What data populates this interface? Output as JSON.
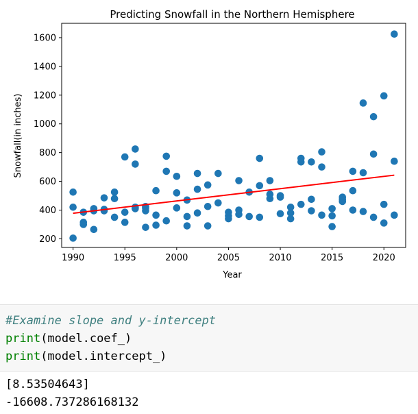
{
  "chart_data": {
    "type": "scatter",
    "title": "Predicting Snowfall in the Northern Hemisphere",
    "xlabel": "Year",
    "ylabel": "Snowfall(in inches)",
    "xlim": [
      1988.9,
      2022.1
    ],
    "ylim": [
      140,
      1700
    ],
    "xticks": [
      1990,
      1995,
      2000,
      2005,
      2010,
      2015,
      2020
    ],
    "yticks": [
      200,
      400,
      600,
      800,
      1000,
      1200,
      1400,
      1600
    ],
    "grid": false,
    "marker_color": "#1f77b4",
    "fit_line_color": "#ff0000",
    "points": [
      [
        1990,
        205
      ],
      [
        1990,
        420
      ],
      [
        1990,
        525
      ],
      [
        1991,
        300
      ],
      [
        1991,
        315
      ],
      [
        1991,
        385
      ],
      [
        1992,
        265
      ],
      [
        1992,
        395
      ],
      [
        1992,
        410
      ],
      [
        1993,
        395
      ],
      [
        1993,
        405
      ],
      [
        1993,
        485
      ],
      [
        1994,
        350
      ],
      [
        1994,
        480
      ],
      [
        1994,
        525
      ],
      [
        1995,
        315
      ],
      [
        1995,
        385
      ],
      [
        1995,
        770
      ],
      [
        1996,
        410
      ],
      [
        1996,
        420
      ],
      [
        1996,
        720
      ],
      [
        1996,
        825
      ],
      [
        1997,
        280
      ],
      [
        1997,
        395
      ],
      [
        1997,
        415
      ],
      [
        1997,
        425
      ],
      [
        1998,
        295
      ],
      [
        1998,
        365
      ],
      [
        1998,
        535
      ],
      [
        1999,
        325
      ],
      [
        1999,
        670
      ],
      [
        1999,
        775
      ],
      [
        2000,
        415
      ],
      [
        2000,
        520
      ],
      [
        2000,
        635
      ],
      [
        2001,
        290
      ],
      [
        2001,
        355
      ],
      [
        2001,
        470
      ],
      [
        2002,
        380
      ],
      [
        2002,
        545
      ],
      [
        2002,
        655
      ],
      [
        2003,
        290
      ],
      [
        2003,
        425
      ],
      [
        2003,
        575
      ],
      [
        2004,
        450
      ],
      [
        2004,
        655
      ],
      [
        2005,
        340
      ],
      [
        2005,
        360
      ],
      [
        2005,
        385
      ],
      [
        2006,
        370
      ],
      [
        2006,
        400
      ],
      [
        2006,
        605
      ],
      [
        2007,
        355
      ],
      [
        2007,
        525
      ],
      [
        2008,
        350
      ],
      [
        2008,
        570
      ],
      [
        2008,
        760
      ],
      [
        2009,
        480
      ],
      [
        2009,
        510
      ],
      [
        2009,
        605
      ],
      [
        2010,
        375
      ],
      [
        2010,
        490
      ],
      [
        2010,
        500
      ],
      [
        2011,
        340
      ],
      [
        2011,
        380
      ],
      [
        2011,
        420
      ],
      [
        2012,
        440
      ],
      [
        2012,
        735
      ],
      [
        2012,
        760
      ],
      [
        2013,
        395
      ],
      [
        2013,
        475
      ],
      [
        2013,
        735
      ],
      [
        2014,
        365
      ],
      [
        2014,
        700
      ],
      [
        2014,
        805
      ],
      [
        2015,
        285
      ],
      [
        2015,
        360
      ],
      [
        2015,
        410
      ],
      [
        2016,
        460
      ],
      [
        2016,
        475
      ],
      [
        2016,
        490
      ],
      [
        2017,
        400
      ],
      [
        2017,
        535
      ],
      [
        2017,
        670
      ],
      [
        2018,
        390
      ],
      [
        2018,
        660
      ],
      [
        2018,
        1145
      ],
      [
        2019,
        350
      ],
      [
        2019,
        790
      ],
      [
        2019,
        1050
      ],
      [
        2020,
        310
      ],
      [
        2020,
        440
      ],
      [
        2020,
        1195
      ],
      [
        2021,
        365
      ],
      [
        2021,
        740
      ],
      [
        2021,
        1625
      ]
    ],
    "fit_line": {
      "x": [
        1990,
        2021
      ],
      "y": [
        378,
        643
      ]
    }
  },
  "code_cell": {
    "comment": "#Examine slope and y-intercept",
    "line1_fn": "print",
    "line1_arg": "(model.coef_)",
    "line2_fn": "print",
    "line2_arg": "(model.intercept_)"
  },
  "output": {
    "line1": "[8.53504643]",
    "line2": "-16608.737286168132"
  }
}
